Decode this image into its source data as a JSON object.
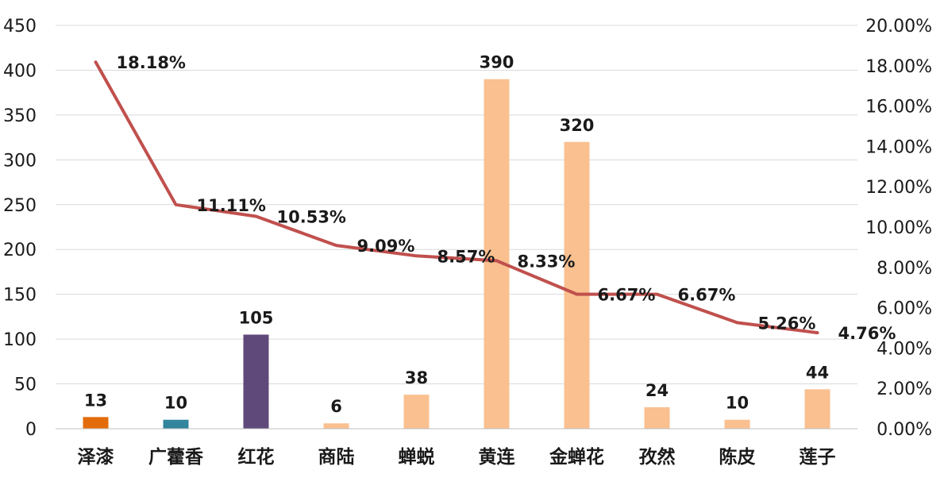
{
  "chart_data": {
    "type": "bar",
    "categories": [
      "泽漆",
      "广藿香",
      "红花",
      "商陆",
      "蝉蜕",
      "黄连",
      "金蝉花",
      "孜然",
      "陈皮",
      "莲子"
    ],
    "series": [
      {
        "type": "bar",
        "axis": "left",
        "values": [
          13,
          10,
          105,
          6,
          38,
          390,
          320,
          24,
          10,
          44
        ],
        "data_labels": [
          "13",
          "10",
          "105",
          "6",
          "38",
          "390",
          "320",
          "24",
          "10",
          "44"
        ],
        "colors": [
          "#E36C0A",
          "#31859C",
          "#5F497A",
          "#FAC090",
          "#FAC090",
          "#FAC090",
          "#FAC090",
          "#FAC090",
          "#FAC090",
          "#FAC090"
        ]
      },
      {
        "type": "line",
        "axis": "right",
        "values": [
          18.18,
          11.11,
          10.53,
          9.09,
          8.57,
          8.33,
          6.67,
          6.67,
          5.26,
          4.76
        ],
        "data_labels": [
          "18.18%",
          "11.11%",
          "10.53%",
          "9.09%",
          "8.57%",
          "8.33%",
          "6.67%",
          "6.67%",
          "5.26%",
          "4.76%"
        ],
        "color": "#C0504D"
      }
    ],
    "y_left": {
      "ylim": [
        0,
        450
      ],
      "ticks": [
        0,
        50,
        100,
        150,
        200,
        250,
        300,
        350,
        400,
        450
      ],
      "tick_labels": [
        "0",
        "50",
        "100",
        "150",
        "200",
        "250",
        "300",
        "350",
        "400",
        "450"
      ]
    },
    "y_right": {
      "ylim": [
        0,
        20
      ],
      "ticks": [
        0,
        2,
        4,
        6,
        8,
        10,
        12,
        14,
        16,
        18,
        20
      ],
      "tick_labels": [
        "0.00%",
        "2.00%",
        "4.00%",
        "6.00%",
        "8.00%",
        "10.00%",
        "12.00%",
        "14.00%",
        "16.00%",
        "18.00%",
        "20.00%"
      ]
    },
    "grid": true,
    "legend": "none",
    "title": "",
    "xlabel": "",
    "ylabel": ""
  }
}
